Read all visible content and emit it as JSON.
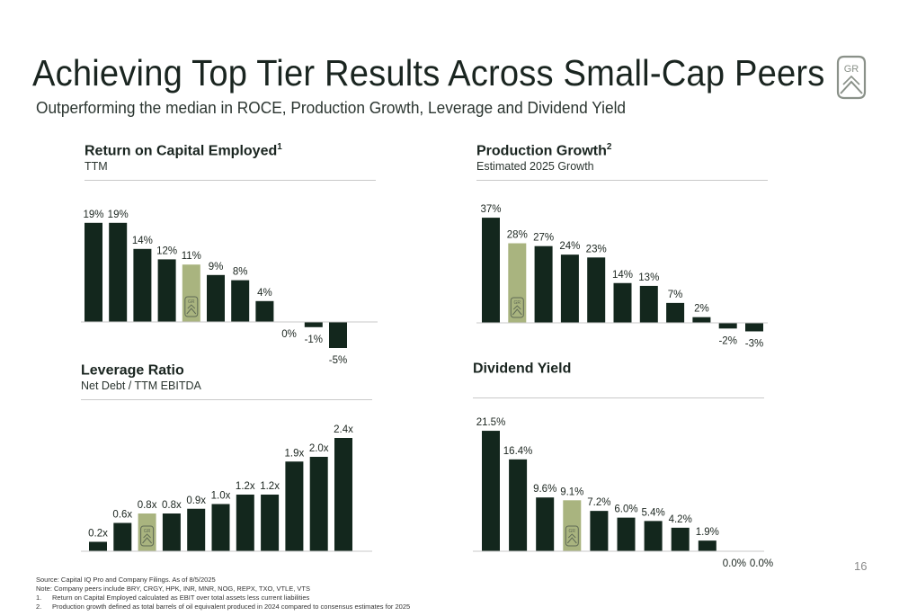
{
  "header": {
    "title": "Achieving Top Tier Results Across Small-Cap Peers",
    "subtitle": "Outperforming the median in ROCE, Production Growth, Leverage and Dividend Yield",
    "logo_text": "GR"
  },
  "colors": {
    "dark_bar": "#13271d",
    "highlight_bar": "#a9b47f",
    "axis": "#c9c9c9",
    "text": "#1c2620"
  },
  "chart_data": [
    {
      "id": "roce",
      "type": "bar",
      "title": "Return on Capital Employed",
      "title_sup": "1",
      "subtitle": "TTM",
      "values": [
        19,
        19,
        14,
        12,
        11,
        9,
        8,
        4,
        0,
        -1,
        -5
      ],
      "labels": [
        "19%",
        "19%",
        "14%",
        "12%",
        "11%",
        "9%",
        "8%",
        "4%",
        "0%",
        "-1%",
        "-5%"
      ],
      "highlight_index": 4,
      "ylim": [
        -5,
        19
      ]
    },
    {
      "id": "production",
      "type": "bar",
      "title": "Production Growth",
      "title_sup": "2",
      "subtitle": "Estimated 2025 Growth",
      "values": [
        37,
        28,
        27,
        24,
        23,
        14,
        13,
        7,
        2,
        -2,
        -3
      ],
      "labels": [
        "37%",
        "28%",
        "27%",
        "24%",
        "23%",
        "14%",
        "13%",
        "7%",
        "2%",
        "-2%",
        "-3%"
      ],
      "highlight_index": 1,
      "ylim": [
        -3,
        37
      ]
    },
    {
      "id": "leverage",
      "type": "bar",
      "title": "Leverage Ratio",
      "title_sup": "",
      "subtitle": "Net Debt / TTM EBITDA",
      "values": [
        0.2,
        0.6,
        0.8,
        0.8,
        0.9,
        1.0,
        1.2,
        1.2,
        1.9,
        2.0,
        2.4
      ],
      "labels": [
        "0.2x",
        "0.6x",
        "0.8x",
        "0.8x",
        "0.9x",
        "1.0x",
        "1.2x",
        "1.2x",
        "1.9x",
        "2.0x",
        "2.4x"
      ],
      "highlight_index": 2,
      "ylim": [
        0,
        2.4
      ]
    },
    {
      "id": "dividend",
      "type": "bar",
      "title": "Dividend Yield",
      "title_sup": "",
      "subtitle": "",
      "values": [
        21.5,
        16.4,
        9.6,
        9.1,
        7.2,
        6.0,
        5.4,
        4.2,
        1.9,
        0.0,
        0.0
      ],
      "labels": [
        "21.5%",
        "16.4%",
        "9.6%",
        "9.1%",
        "7.2%",
        "6.0%",
        "5.4%",
        "4.2%",
        "1.9%",
        "0.0%",
        "0.0%"
      ],
      "highlight_index": 3,
      "ylim": [
        0,
        21.5
      ]
    }
  ],
  "footer": {
    "source": "Source: Capital IQ Pro and Company Filings. As of 8/5/2025",
    "note": "Note: Company peers include BRY, CRGY, HPK, INR, MNR, NOG, REPX, TXO, VTLE, VTS",
    "footnotes": [
      {
        "num": "1.",
        "text": "Return on Capital Employed calculated as EBIT over total assets less current liabilities"
      },
      {
        "num": "2.",
        "text": "Production growth defined as total barrels of oil equivalent produced in 2024 compared to consensus estimates for 2025"
      }
    ],
    "page_number": "16"
  }
}
